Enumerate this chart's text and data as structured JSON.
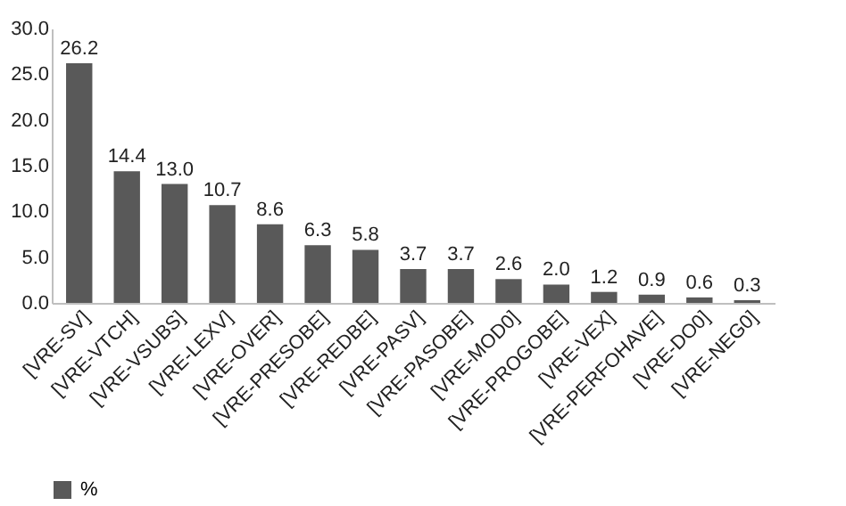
{
  "chart_data": {
    "type": "bar",
    "categories": [
      "[VRE-SV]",
      "[VRE-VTCH]",
      "[VRE-VSUBS]",
      "[VRE-LEXV]",
      "[VRE-OVER]",
      "[VRE-PRESOBE]",
      "[VRE-REDBE]",
      "[VRE-PASV]",
      "[VRE-PASOBE]",
      "[VRE-MOD0]",
      "[VRE-PROGOBE]",
      "[VRE-VEX]",
      "[VRE-PERFOHAVE]",
      "[VRE-DO0]",
      "[VRE-NEG0]"
    ],
    "series": [
      {
        "name": "%",
        "color": "#595959",
        "values": [
          26.2,
          14.4,
          13.0,
          10.7,
          8.6,
          6.3,
          5.8,
          3.7,
          3.7,
          2.6,
          2.0,
          1.2,
          0.9,
          0.6,
          0.3
        ],
        "value_labels": [
          "26.2",
          "14.4",
          "13.0",
          "10.7",
          "8.6",
          "6.3",
          "5.8",
          "3.7",
          "3.7",
          "2.6",
          "2.0",
          "1.2",
          "0.9",
          "0.6",
          "0.3"
        ]
      }
    ],
    "ylim": [
      0,
      30
    ],
    "yticks": [
      {
        "value": 0,
        "label": "0.0"
      },
      {
        "value": 5,
        "label": "5.0"
      },
      {
        "value": 10,
        "label": "10.0"
      },
      {
        "value": 15,
        "label": "15.0"
      },
      {
        "value": 20,
        "label": "20.0"
      },
      {
        "value": 25,
        "label": "25.0"
      },
      {
        "value": 30,
        "label": "30.0"
      }
    ],
    "legend": "bottom",
    "grid": false
  }
}
